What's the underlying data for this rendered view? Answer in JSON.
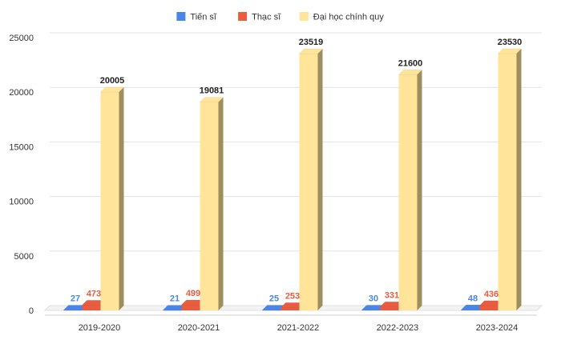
{
  "chart_data": {
    "type": "bar",
    "style": "3d-clustered",
    "categories": [
      "2019-2020",
      "2020-2021",
      "2021-2022",
      "2022-2023",
      "2023-2024"
    ],
    "series": [
      {
        "name": "Tiến sĩ",
        "color": "#4a86e8",
        "label_color": "#4a86e8",
        "values": [
          27,
          21,
          25,
          30,
          48
        ]
      },
      {
        "name": "Thạc sĩ",
        "color": "#ea5c3f",
        "label_color": "#ea5c3f",
        "values": [
          473,
          499,
          253,
          331,
          436
        ]
      },
      {
        "name": "Đại học  chính quy",
        "color": "#ffe49a",
        "label_color": "#222222",
        "values": [
          20005,
          19081,
          23519,
          21600,
          23530
        ]
      }
    ],
    "y_ticks": [
      0,
      5000,
      10000,
      15000,
      20000,
      25000
    ],
    "ylim": [
      0,
      25000
    ],
    "grid": true,
    "legend_position": "top-center",
    "title": "",
    "xlabel": "",
    "ylabel": ""
  }
}
